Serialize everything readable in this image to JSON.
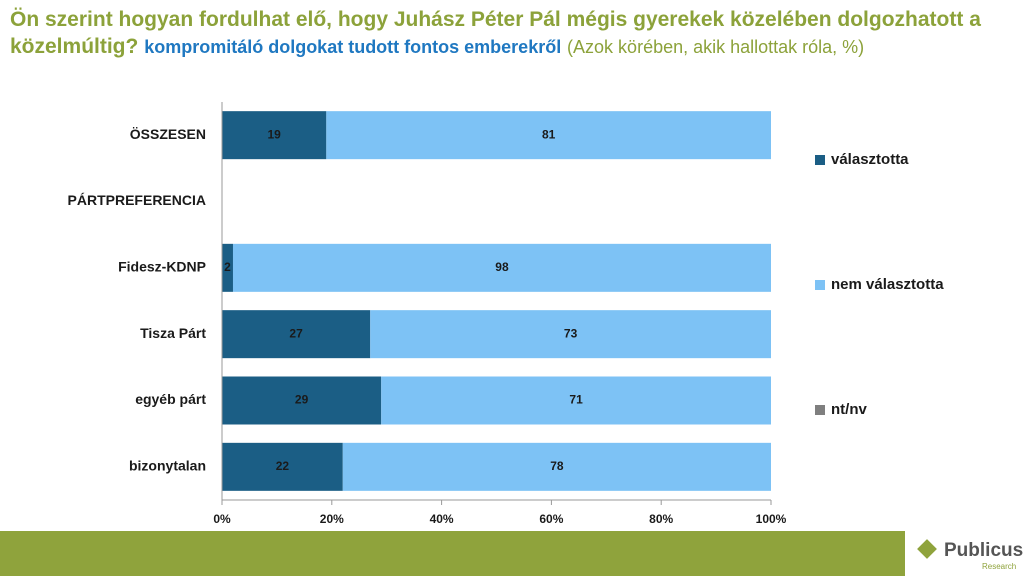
{
  "chart_data": {
    "type": "stacked-barh",
    "title": "Ön szerint hogyan fordulhat elő, hogy Juhász Péter Pál mégis gyerekek közelében dolgozhatott a közelmúltig?",
    "subtitle": "kompromitáló dolgokat tudott fontos emberekről",
    "note": "(Azok körében, akik hallottak róla, %)",
    "categories": [
      "ÖSSZESEN",
      "PÁRTPREFERENCIA",
      "Fidesz-KDNP",
      "Tisza Párt",
      "egyéb párt",
      "bizonytalan"
    ],
    "series": [
      {
        "name": "választotta",
        "color": "#1b5e85",
        "label_color": "#ffffff",
        "values": [
          19,
          null,
          2,
          27,
          29,
          22
        ]
      },
      {
        "name": "nem választotta",
        "color": "#7dc2f5",
        "label_color": "#1a1a1a",
        "values": [
          81,
          null,
          98,
          73,
          71,
          78
        ]
      },
      {
        "name": "nt/nv",
        "color": "#7f7f7f",
        "label_color": "#1a1a1a",
        "values": [
          0,
          null,
          0,
          0,
          0,
          0
        ]
      }
    ],
    "xlim": [
      0,
      100
    ],
    "xticks": [
      {
        "value": 0,
        "label": "0%"
      },
      {
        "value": 20,
        "label": "20%"
      },
      {
        "value": 40,
        "label": "40%"
      },
      {
        "value": 60,
        "label": "60%"
      },
      {
        "value": 80,
        "label": "80%"
      },
      {
        "value": 100,
        "label": "100%"
      }
    ],
    "grid": false
  },
  "footer": {
    "brand": "Publicus",
    "sub": "Research"
  }
}
